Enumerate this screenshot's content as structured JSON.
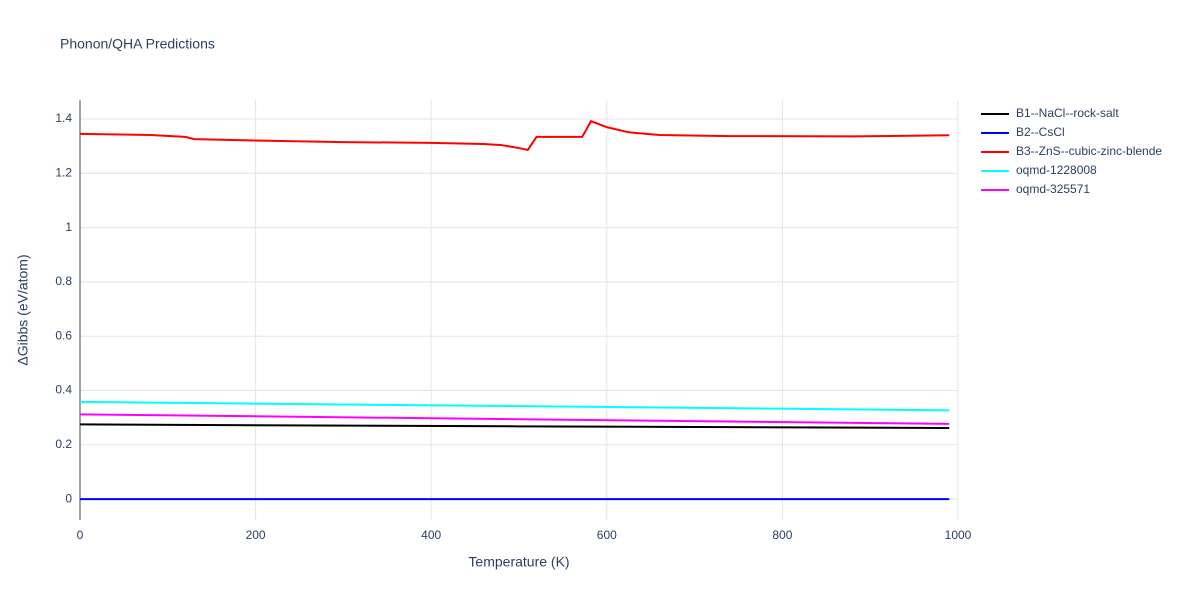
{
  "chart_data": {
    "type": "line",
    "title": "Phonon/QHA Predictions",
    "x_label": "Temperature (K)",
    "y_label": "ΔGibbs (eV/atom)",
    "xlim": [
      0,
      1000
    ],
    "xticks": [
      0,
      200,
      400,
      600,
      800,
      1000
    ],
    "ylim": [
      -0.077,
      1.47
    ],
    "yticks": [
      0,
      0.2,
      0.4,
      0.6,
      0.8,
      1,
      1.2,
      1.4
    ],
    "grid": true,
    "legend": "right",
    "series": [
      {
        "name": "B1--NaCl--rock-salt",
        "color": "#000000",
        "x": [
          0,
          500,
          990
        ],
        "values": [
          0.275,
          0.268,
          0.262
        ]
      },
      {
        "name": "B2--CsCl",
        "color": "#0000ff",
        "x": [
          0,
          990
        ],
        "values": [
          0,
          0
        ]
      },
      {
        "name": "B3--ZnS--cubic-zinc-blende",
        "color": "#ff0000",
        "x": [
          0,
          80,
          120,
          130,
          180,
          300,
          400,
          460,
          480,
          500,
          510,
          520,
          540,
          572,
          582,
          600,
          625,
          660,
          740,
          880,
          990
        ],
        "values": [
          1.345,
          1.341,
          1.334,
          1.326,
          1.322,
          1.315,
          1.312,
          1.308,
          1.304,
          1.293,
          1.286,
          1.334,
          1.334,
          1.334,
          1.392,
          1.37,
          1.351,
          1.341,
          1.337,
          1.336,
          1.34
        ]
      },
      {
        "name": "oqmd-1228008",
        "color": "#00ffff",
        "x": [
          0,
          990
        ],
        "values": [
          0.358,
          0.327
        ]
      },
      {
        "name": "oqmd-325571",
        "color": "#ff00ff",
        "x": [
          0,
          990
        ],
        "values": [
          0.312,
          0.277
        ]
      }
    ]
  }
}
